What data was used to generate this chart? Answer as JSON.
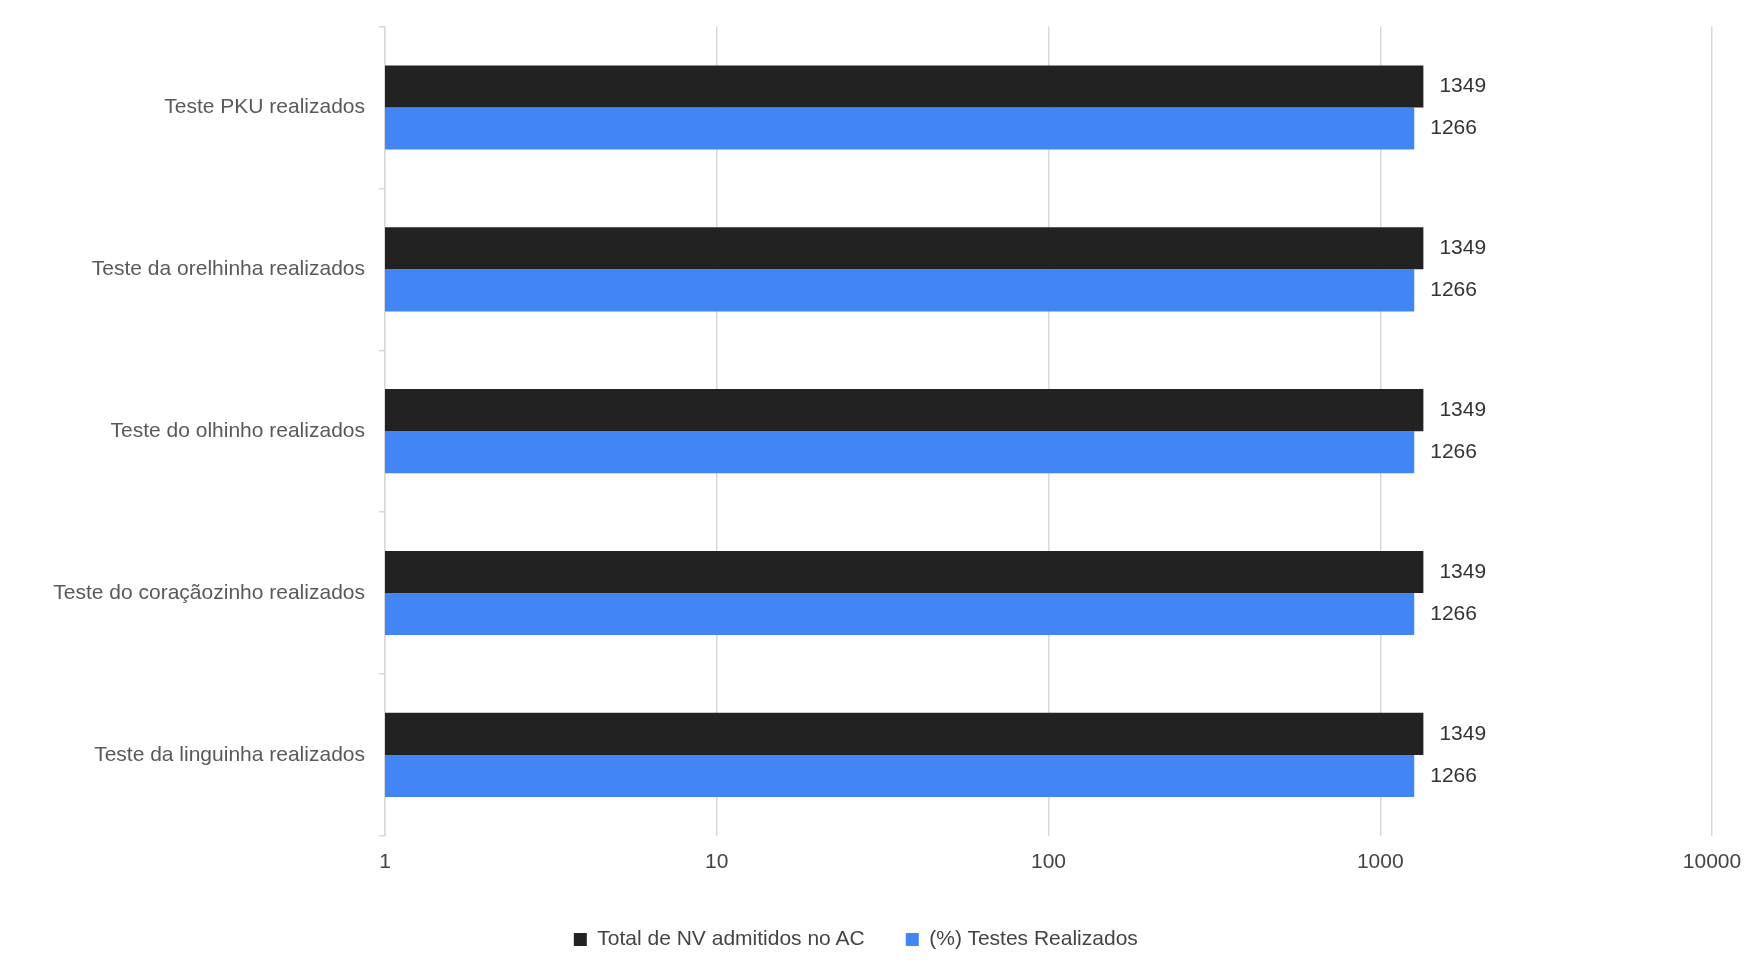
{
  "chart_data": {
    "type": "bar",
    "orientation": "horizontal",
    "log": "x",
    "categories": [
      "Teste PKU realizados",
      "Teste da orelhinha realizados",
      "Teste do olhinho realizados",
      "Teste do coraçãozinho realizados",
      "Teste da linguinha realizados"
    ],
    "series": [
      {
        "name": "Total de NV admitidos no AC",
        "color": "#222222",
        "values": [
          1349,
          1349,
          1349,
          1349,
          1349
        ]
      },
      {
        "name": "(%) Testes Realizados",
        "color": "#4285f4",
        "values": [
          1266,
          1266,
          1266,
          1266,
          1266
        ]
      }
    ],
    "xlim": [
      1,
      10000
    ],
    "xticks": [
      1,
      10,
      100,
      1000,
      10000
    ],
    "grid": "x",
    "legend": "bottom",
    "data_labels": true
  }
}
